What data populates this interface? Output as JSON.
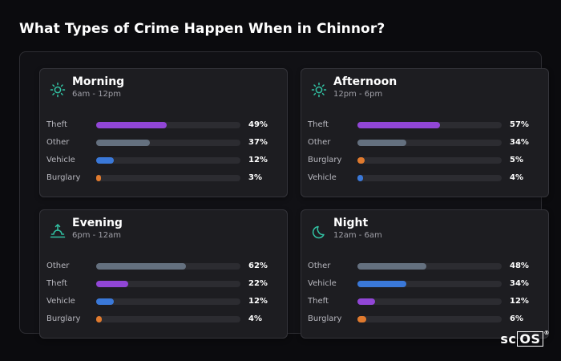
{
  "title": "What Types of Crime Happen When in Chinnor?",
  "brand": {
    "prefix": "sc",
    "boxed": "OS",
    "mark": "®"
  },
  "colors": {
    "Theft": "#9146d6",
    "Other": "#64707f",
    "Vehicle": "#3a78d8",
    "Burglary": "#e07a2e",
    "icon": "#32c3a4"
  },
  "chart_data": [
    {
      "type": "bar",
      "title": "Morning",
      "subtitle": "6am - 12pm",
      "icon": "sun-icon",
      "xlim": [
        0,
        100
      ],
      "categories": [
        "Theft",
        "Other",
        "Vehicle",
        "Burglary"
      ],
      "values": [
        49,
        37,
        12,
        3
      ],
      "labels": [
        "49%",
        "37%",
        "12%",
        "3%"
      ]
    },
    {
      "type": "bar",
      "title": "Afternoon",
      "subtitle": "12pm - 6pm",
      "icon": "sun-icon",
      "xlim": [
        0,
        100
      ],
      "categories": [
        "Theft",
        "Other",
        "Burglary",
        "Vehicle"
      ],
      "values": [
        57,
        34,
        5,
        4
      ],
      "labels": [
        "57%",
        "34%",
        "5%",
        "4%"
      ]
    },
    {
      "type": "bar",
      "title": "Evening",
      "subtitle": "6pm - 12am",
      "icon": "sunset-icon",
      "xlim": [
        0,
        100
      ],
      "categories": [
        "Other",
        "Theft",
        "Vehicle",
        "Burglary"
      ],
      "values": [
        62,
        22,
        12,
        4
      ],
      "labels": [
        "62%",
        "22%",
        "12%",
        "4%"
      ]
    },
    {
      "type": "bar",
      "title": "Night",
      "subtitle": "12am - 6am",
      "icon": "moon-icon",
      "xlim": [
        0,
        100
      ],
      "categories": [
        "Other",
        "Vehicle",
        "Theft",
        "Burglary"
      ],
      "values": [
        48,
        34,
        12,
        6
      ],
      "labels": [
        "48%",
        "34%",
        "12%",
        "6%"
      ]
    }
  ]
}
